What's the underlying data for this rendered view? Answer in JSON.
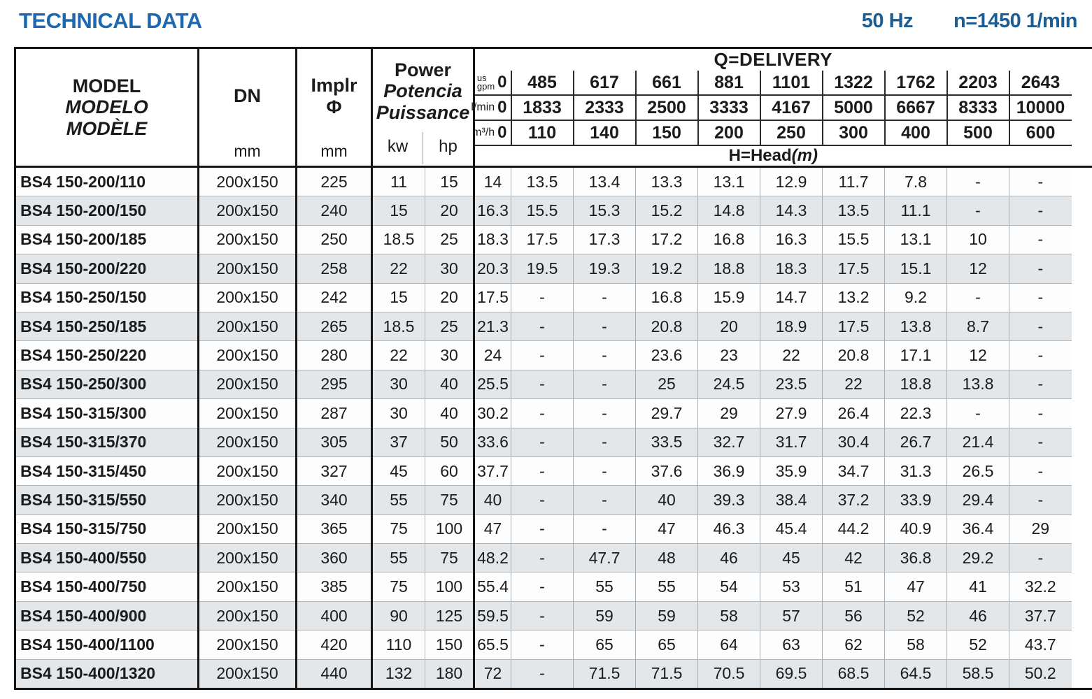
{
  "title": "TECHNICAL DATA",
  "frequency": "50 Hz",
  "speed": "n=1450 1/min",
  "colors": {
    "title_blue": "#1d68af",
    "specs_blue": "#1e5d92",
    "stripe_gray": "#e3e7ea",
    "border_dark": "#151515",
    "border_light": "#a8adb1"
  },
  "table": {
    "model_header": {
      "lines": [
        "MODEL",
        "MODELO",
        "MODÈLE"
      ]
    },
    "dn_header": {
      "label": "DN",
      "unit": "mm"
    },
    "implr_header": {
      "label": "Implr",
      "symbol": "Φ",
      "unit": "mm"
    },
    "power_header": {
      "lines": [
        "Power",
        "Potencia",
        "Puissance"
      ],
      "units": [
        "kw",
        "hp"
      ]
    },
    "delivery_header": {
      "title": "Q=DELIVERY",
      "unit_rows": [
        {
          "label_lines": [
            "us",
            "gpm"
          ],
          "zero": "0",
          "values": [
            "485",
            "617",
            "661",
            "881",
            "1101",
            "1322",
            "1762",
            "2203",
            "2643"
          ]
        },
        {
          "label_lines": [
            "l/min"
          ],
          "zero": "0",
          "values": [
            "1833",
            "2333",
            "2500",
            "3333",
            "4167",
            "5000",
            "6667",
            "8333",
            "10000"
          ]
        },
        {
          "label_lines": [
            "m³/h"
          ],
          "zero": "0",
          "values": [
            "110",
            "140",
            "150",
            "200",
            "250",
            "300",
            "400",
            "500",
            "600"
          ]
        }
      ],
      "footer": {
        "label": "H=Head",
        "unit": "(m)"
      }
    },
    "rows": [
      {
        "model": "BS4 150-200/110",
        "dn": "200x150",
        "implr": "225",
        "kw": "11",
        "hp": "15",
        "head": [
          "14",
          "13.5",
          "13.4",
          "13.3",
          "13.1",
          "12.9",
          "11.7",
          "7.8",
          "-",
          "-"
        ]
      },
      {
        "model": "BS4 150-200/150",
        "dn": "200x150",
        "implr": "240",
        "kw": "15",
        "hp": "20",
        "head": [
          "16.3",
          "15.5",
          "15.3",
          "15.2",
          "14.8",
          "14.3",
          "13.5",
          "11.1",
          "-",
          "-"
        ]
      },
      {
        "model": "BS4 150-200/185",
        "dn": "200x150",
        "implr": "250",
        "kw": "18.5",
        "hp": "25",
        "head": [
          "18.3",
          "17.5",
          "17.3",
          "17.2",
          "16.8",
          "16.3",
          "15.5",
          "13.1",
          "10",
          "-"
        ]
      },
      {
        "model": "BS4 150-200/220",
        "dn": "200x150",
        "implr": "258",
        "kw": "22",
        "hp": "30",
        "head": [
          "20.3",
          "19.5",
          "19.3",
          "19.2",
          "18.8",
          "18.3",
          "17.5",
          "15.1",
          "12",
          "-"
        ]
      },
      {
        "model": "BS4 150-250/150",
        "dn": "200x150",
        "implr": "242",
        "kw": "15",
        "hp": "20",
        "head": [
          "17.5",
          "-",
          "-",
          "16.8",
          "15.9",
          "14.7",
          "13.2",
          "9.2",
          "-",
          "-"
        ]
      },
      {
        "model": "BS4 150-250/185",
        "dn": "200x150",
        "implr": "265",
        "kw": "18.5",
        "hp": "25",
        "head": [
          "21.3",
          "-",
          "-",
          "20.8",
          "20",
          "18.9",
          "17.5",
          "13.8",
          "8.7",
          "-"
        ]
      },
      {
        "model": "BS4 150-250/220",
        "dn": "200x150",
        "implr": "280",
        "kw": "22",
        "hp": "30",
        "head": [
          "24",
          "-",
          "-",
          "23.6",
          "23",
          "22",
          "20.8",
          "17.1",
          "12",
          "-"
        ]
      },
      {
        "model": "BS4 150-250/300",
        "dn": "200x150",
        "implr": "295",
        "kw": "30",
        "hp": "40",
        "head": [
          "25.5",
          "-",
          "-",
          "25",
          "24.5",
          "23.5",
          "22",
          "18.8",
          "13.8",
          "-"
        ]
      },
      {
        "model": "BS4 150-315/300",
        "dn": "200x150",
        "implr": "287",
        "kw": "30",
        "hp": "40",
        "head": [
          "30.2",
          "-",
          "-",
          "29.7",
          "29",
          "27.9",
          "26.4",
          "22.3",
          "-",
          "-"
        ]
      },
      {
        "model": "BS4 150-315/370",
        "dn": "200x150",
        "implr": "305",
        "kw": "37",
        "hp": "50",
        "head": [
          "33.6",
          "-",
          "-",
          "33.5",
          "32.7",
          "31.7",
          "30.4",
          "26.7",
          "21.4",
          "-"
        ]
      },
      {
        "model": "BS4 150-315/450",
        "dn": "200x150",
        "implr": "327",
        "kw": "45",
        "hp": "60",
        "head": [
          "37.7",
          "-",
          "-",
          "37.6",
          "36.9",
          "35.9",
          "34.7",
          "31.3",
          "26.5",
          "-"
        ]
      },
      {
        "model": "BS4 150-315/550",
        "dn": "200x150",
        "implr": "340",
        "kw": "55",
        "hp": "75",
        "head": [
          "40",
          "-",
          "-",
          "40",
          "39.3",
          "38.4",
          "37.2",
          "33.9",
          "29.4",
          "-"
        ]
      },
      {
        "model": "BS4 150-315/750",
        "dn": "200x150",
        "implr": "365",
        "kw": "75",
        "hp": "100",
        "head": [
          "47",
          "-",
          "-",
          "47",
          "46.3",
          "45.4",
          "44.2",
          "40.9",
          "36.4",
          "29"
        ]
      },
      {
        "model": "BS4 150-400/550",
        "dn": "200x150",
        "implr": "360",
        "kw": "55",
        "hp": "75",
        "head": [
          "48.2",
          "-",
          "47.7",
          "48",
          "46",
          "45",
          "42",
          "36.8",
          "29.2",
          "-"
        ]
      },
      {
        "model": "BS4 150-400/750",
        "dn": "200x150",
        "implr": "385",
        "kw": "75",
        "hp": "100",
        "head": [
          "55.4",
          "-",
          "55",
          "55",
          "54",
          "53",
          "51",
          "47",
          "41",
          "32.2"
        ]
      },
      {
        "model": "BS4 150-400/900",
        "dn": "200x150",
        "implr": "400",
        "kw": "90",
        "hp": "125",
        "head": [
          "59.5",
          "-",
          "59",
          "59",
          "58",
          "57",
          "56",
          "52",
          "46",
          "37.7"
        ]
      },
      {
        "model": "BS4 150-400/1100",
        "dn": "200x150",
        "implr": "420",
        "kw": "110",
        "hp": "150",
        "head": [
          "65.5",
          "-",
          "65",
          "65",
          "64",
          "63",
          "62",
          "58",
          "52",
          "43.7"
        ]
      },
      {
        "model": "BS4 150-400/1320",
        "dn": "200x150",
        "implr": "440",
        "kw": "132",
        "hp": "180",
        "head": [
          "72",
          "-",
          "71.5",
          "71.5",
          "70.5",
          "69.5",
          "68.5",
          "64.5",
          "58.5",
          "50.2"
        ]
      }
    ]
  }
}
